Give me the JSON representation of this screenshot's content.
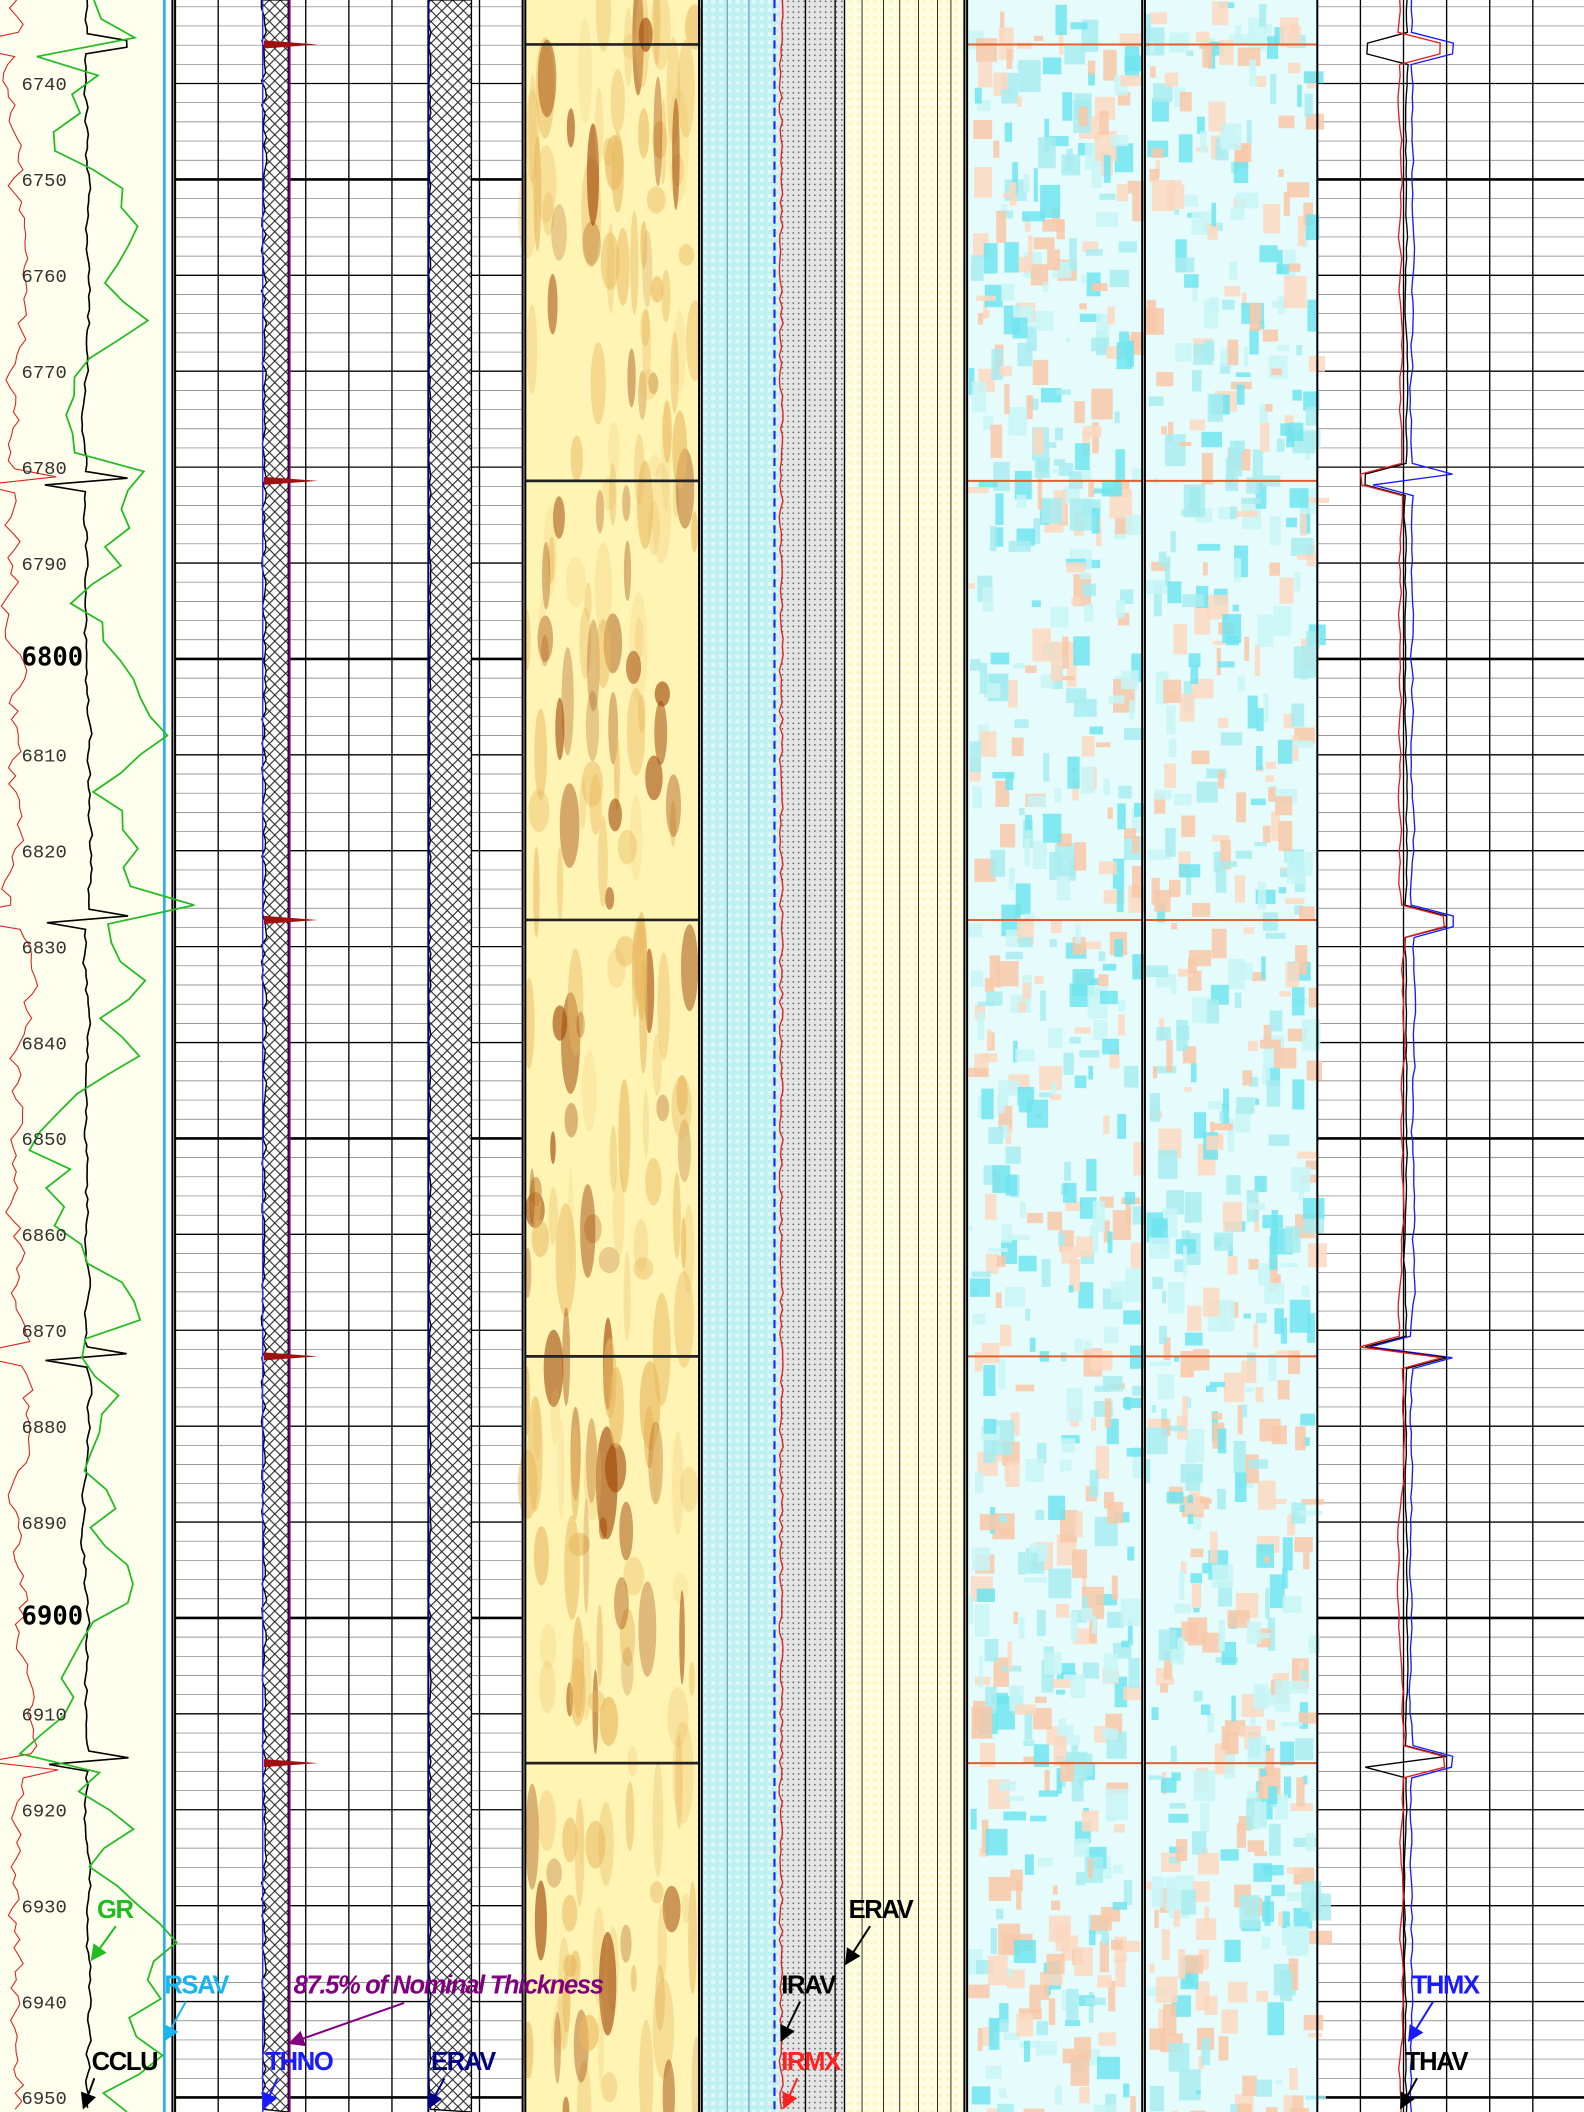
{
  "depth_labels": [
    "6740",
    "6750",
    "6760",
    "6770",
    "6780",
    "6790",
    "6800",
    "6810",
    "6820",
    "6830",
    "6840",
    "6850",
    "6860",
    "6870",
    "6880",
    "6890",
    "6900",
    "6910",
    "6920",
    "6930",
    "6940",
    "6950"
  ],
  "curve_labels": [
    {
      "text": "GR",
      "color": "#22bb22"
    },
    {
      "text": "RSAV",
      "color": "#19b5ef"
    },
    {
      "text": "CCLU",
      "color": "#000000"
    },
    {
      "text": "87.5% of Nominal Thickness",
      "color": "#800080"
    },
    {
      "text": "THNO",
      "color": "#1a1aff"
    },
    {
      "text": "ERAV",
      "color": "#000080"
    },
    {
      "text": "IRAV",
      "color": "#000000"
    },
    {
      "text": "IRMX",
      "color": "#ff2020"
    },
    {
      "text": "ERAV",
      "color": "#000000"
    },
    {
      "text": "THMX",
      "color": "#1a1aff"
    },
    {
      "text": "THAV",
      "color": "#000000"
    }
  ]
}
